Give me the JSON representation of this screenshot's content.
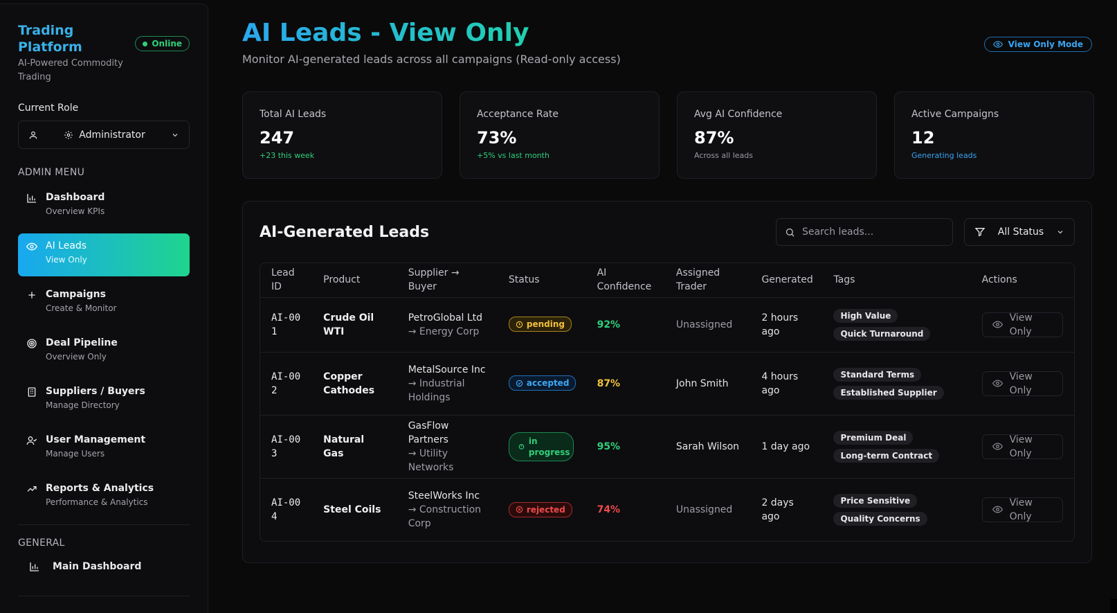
{
  "sidebar": {
    "brand_title": "Trading Platform",
    "brand_subtitle": "AI-Powered Commodity Trading",
    "online_label": "Online",
    "role_label": "Current Role",
    "role_value": "Administrator",
    "admin_menu_label": "ADMIN MENU",
    "items": [
      {
        "title": "Dashboard",
        "sub": "Overview KPIs"
      },
      {
        "title": "AI Leads",
        "sub": "View Only"
      },
      {
        "title": "Campaigns",
        "sub": "Create & Monitor"
      },
      {
        "title": "Deal Pipeline",
        "sub": "Overview Only"
      },
      {
        "title": "Suppliers / Buyers",
        "sub": "Manage Directory"
      },
      {
        "title": "User Management",
        "sub": "Manage Users"
      },
      {
        "title": "Reports & Analytics",
        "sub": "Performance & Analytics"
      }
    ],
    "general_label": "GENERAL",
    "general_items": [
      {
        "title": "Main Dashboard"
      }
    ]
  },
  "header": {
    "title": "AI Leads - View Only",
    "subtitle": "Monitor AI-generated leads across all campaigns (Read-only access)",
    "view_mode_label": "View Only Mode"
  },
  "kpis": [
    {
      "label": "Total AI Leads",
      "value": "247",
      "note": "+23 this week"
    },
    {
      "label": "Acceptance Rate",
      "value": "73%",
      "note": "+5% vs last month"
    },
    {
      "label": "Avg AI Confidence",
      "value": "87%",
      "note": "Across all leads"
    },
    {
      "label": "Active Campaigns",
      "value": "12",
      "note": "Generating leads"
    }
  ],
  "leads": {
    "title": "AI-Generated Leads",
    "search_placeholder": "Search leads...",
    "status_filter": "All Status",
    "columns": [
      "Lead ID",
      "Product",
      "Supplier → Buyer",
      "Status",
      "AI Confidence",
      "Assigned Trader",
      "Generated",
      "Tags",
      "Actions"
    ],
    "rows": [
      {
        "id": "AI-001",
        "product": "Crude Oil WTI",
        "supplier": "PetroGlobal Ltd",
        "buyer": "→ Energy Corp",
        "status": "pending",
        "confidence": "92%",
        "trader": "Unassigned",
        "generated": "2 hours ago",
        "tags": [
          "High Value",
          "Quick Turnaround"
        ],
        "action": "View Only"
      },
      {
        "id": "AI-002",
        "product": "Copper Cathodes",
        "supplier": "MetalSource Inc",
        "buyer": "→ Industrial Holdings",
        "status": "accepted",
        "confidence": "87%",
        "trader": "John Smith",
        "generated": "4 hours ago",
        "tags": [
          "Standard Terms",
          "Established Supplier"
        ],
        "action": "View Only"
      },
      {
        "id": "AI-003",
        "product": "Natural Gas",
        "supplier": "GasFlow Partners",
        "buyer": "→ Utility Networks",
        "status": "in progress",
        "confidence": "95%",
        "trader": "Sarah Wilson",
        "generated": "1 day ago",
        "tags": [
          "Premium Deal",
          "Long-term Contract"
        ],
        "action": "View Only"
      },
      {
        "id": "AI-004",
        "product": "Steel Coils",
        "supplier": "SteelWorks Inc",
        "buyer": "→ Construction Corp",
        "status": "rejected",
        "confidence": "74%",
        "trader": "Unassigned",
        "generated": "2 days ago",
        "tags": [
          "Price Sensitive",
          "Quality Concerns"
        ],
        "action": "View Only"
      }
    ]
  },
  "colors": {
    "accent_blue": "#3ab0e8",
    "accent_green": "#2fd07a",
    "pending": "#f3c13a",
    "rejected": "#f04a4a",
    "background": "#0a0a0b"
  }
}
